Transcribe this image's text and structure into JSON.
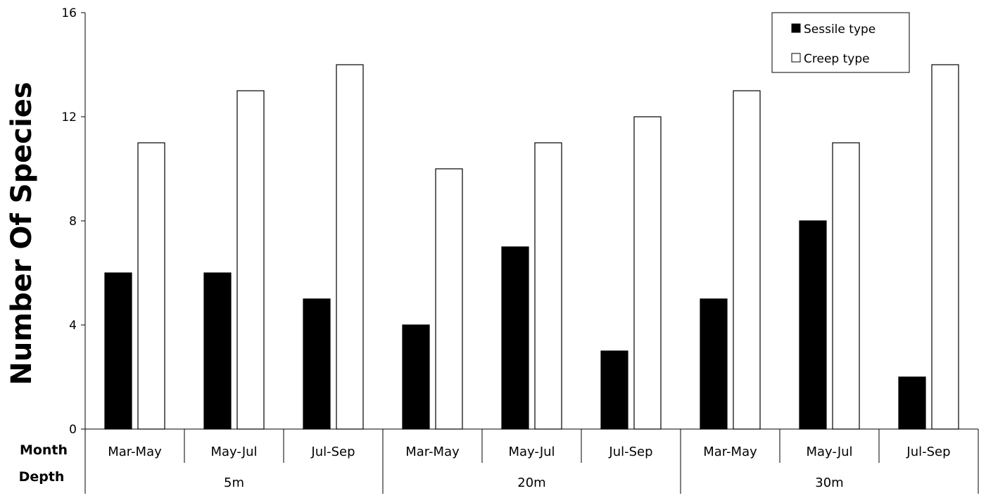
{
  "chart_data": {
    "type": "bar",
    "ylabel": "Number Of Species",
    "ylim": [
      0,
      16
    ],
    "yticks": [
      0,
      4,
      8,
      12,
      16
    ],
    "row_labels": {
      "month": "Month",
      "depth": "Depth"
    },
    "categories": [
      "Mar-May",
      "May-Jul",
      "Jul-Sep",
      "Mar-May",
      "May-Jul",
      "Jul-Sep",
      "Mar-May",
      "May-Jul",
      "Jul-Sep"
    ],
    "groups": [
      {
        "label": "5m",
        "count": 3
      },
      {
        "label": "20m",
        "count": 3
      },
      {
        "label": "30m",
        "count": 3
      }
    ],
    "series": [
      {
        "name": "Sessile type",
        "color": "#000000",
        "values": [
          6,
          6,
          5,
          4,
          7,
          3,
          5,
          8,
          2
        ]
      },
      {
        "name": "Creep type",
        "color": "#ffffff",
        "values": [
          11,
          13,
          14,
          10,
          11,
          12,
          13,
          11,
          14
        ]
      }
    ],
    "legend": {
      "position": "top-right"
    },
    "grid": false
  }
}
